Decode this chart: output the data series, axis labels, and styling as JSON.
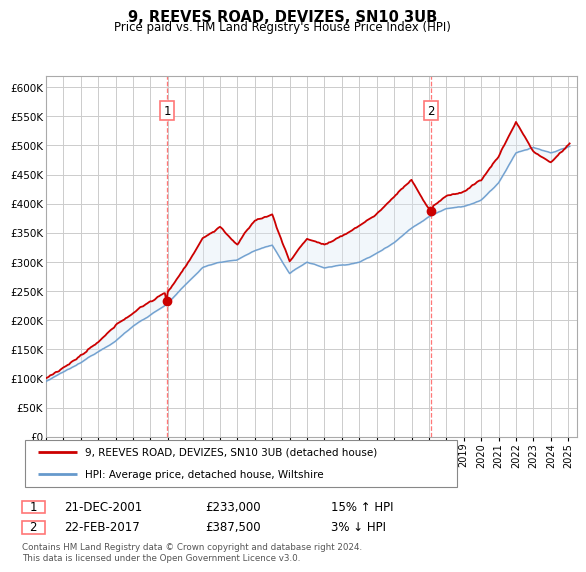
{
  "title": "9, REEVES ROAD, DEVIZES, SN10 3UB",
  "subtitle": "Price paid vs. HM Land Registry's House Price Index (HPI)",
  "ylabel_ticks": [
    "£0",
    "£50K",
    "£100K",
    "£150K",
    "£200K",
    "£250K",
    "£300K",
    "£350K",
    "£400K",
    "£450K",
    "£500K",
    "£550K",
    "£600K"
  ],
  "ytick_values": [
    0,
    50000,
    100000,
    150000,
    200000,
    250000,
    300000,
    350000,
    400000,
    450000,
    500000,
    550000,
    600000
  ],
  "ylim": [
    0,
    620000
  ],
  "sale1_date": "21-DEC-2001",
  "sale1_price": 233000,
  "sale1_hpi_pct": "15% ↑ HPI",
  "sale1_x": 2001.958,
  "sale1_y": 233000,
  "sale2_date": "22-FEB-2017",
  "sale2_price": 387500,
  "sale2_hpi_pct": "3% ↓ HPI",
  "sale2_x": 2017.125,
  "sale2_y": 387500,
  "line1_color": "#cc0000",
  "line2_color": "#6699cc",
  "fill_color": "#dce9f5",
  "vline_color": "#ff7777",
  "legend1_label": "9, REEVES ROAD, DEVIZES, SN10 3UB (detached house)",
  "legend2_label": "HPI: Average price, detached house, Wiltshire",
  "footer": "Contains HM Land Registry data © Crown copyright and database right 2024.\nThis data is licensed under the Open Government Licence v3.0.",
  "bg_color": "#ffffff",
  "grid_color": "#cccccc",
  "xlim_start": 1995,
  "xlim_end": 2025.5
}
